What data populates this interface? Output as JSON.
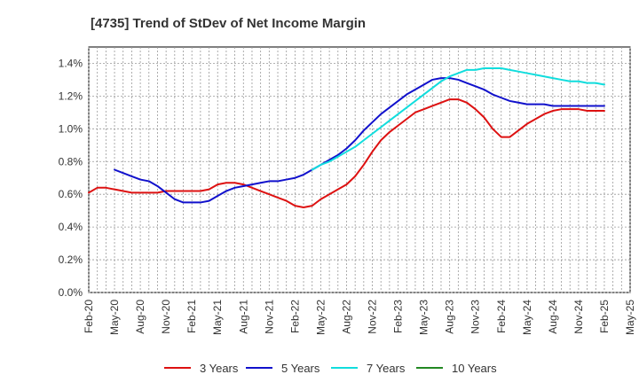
{
  "chart_data": {
    "type": "line",
    "title": "[4735]  Trend of StDev of Net Income Margin",
    "xlabel": "",
    "ylabel": "",
    "ylim": [
      0,
      1.5
    ],
    "y_ticks": [
      0.0,
      0.2,
      0.4,
      0.6,
      0.8,
      1.0,
      1.2,
      1.4
    ],
    "y_tick_labels": [
      "0.0%",
      "0.2%",
      "0.4%",
      "0.6%",
      "0.8%",
      "1.0%",
      "1.2%",
      "1.4%"
    ],
    "x_tick_labels": [
      "Feb-20",
      "May-20",
      "Aug-20",
      "Nov-20",
      "Feb-21",
      "May-21",
      "Aug-21",
      "Nov-21",
      "Feb-22",
      "May-22",
      "Aug-22",
      "Nov-22",
      "Feb-23",
      "May-23",
      "Aug-23",
      "Nov-23",
      "Feb-24",
      "May-24",
      "Aug-24",
      "Nov-24",
      "Feb-25",
      "May-25"
    ],
    "grid": true,
    "legend_position": "bottom",
    "series": [
      {
        "name": "3 Years",
        "color": "#dd1111",
        "x": [
          "2020-02",
          "2020-03",
          "2020-04",
          "2020-05",
          "2020-06",
          "2020-07",
          "2020-08",
          "2020-09",
          "2020-10",
          "2020-11",
          "2020-12",
          "2021-01",
          "2021-02",
          "2021-03",
          "2021-04",
          "2021-05",
          "2021-06",
          "2021-07",
          "2021-08",
          "2021-09",
          "2021-10",
          "2021-11",
          "2021-12",
          "2022-01",
          "2022-02",
          "2022-03",
          "2022-04",
          "2022-05",
          "2022-06",
          "2022-07",
          "2022-08",
          "2022-09",
          "2022-10",
          "2022-11",
          "2022-12",
          "2023-01",
          "2023-02",
          "2023-03",
          "2023-04",
          "2023-05",
          "2023-06",
          "2023-07",
          "2023-08",
          "2023-09",
          "2023-10",
          "2023-11",
          "2023-12",
          "2024-01",
          "2024-02",
          "2024-03",
          "2024-04",
          "2024-05",
          "2024-06",
          "2024-07",
          "2024-08",
          "2024-09",
          "2024-10",
          "2024-11",
          "2024-12",
          "2025-01",
          "2025-02"
        ],
        "values": [
          0.61,
          0.64,
          0.64,
          0.63,
          0.62,
          0.61,
          0.61,
          0.61,
          0.61,
          0.62,
          0.62,
          0.62,
          0.62,
          0.62,
          0.63,
          0.66,
          0.67,
          0.67,
          0.66,
          0.64,
          0.62,
          0.6,
          0.58,
          0.56,
          0.53,
          0.52,
          0.53,
          0.57,
          0.6,
          0.63,
          0.66,
          0.71,
          0.78,
          0.86,
          0.93,
          0.98,
          1.02,
          1.06,
          1.1,
          1.12,
          1.14,
          1.16,
          1.18,
          1.18,
          1.16,
          1.12,
          1.07,
          1.0,
          0.95,
          0.95,
          0.99,
          1.03,
          1.06,
          1.09,
          1.11,
          1.12,
          1.12,
          1.12,
          1.11,
          1.11,
          1.11
        ]
      },
      {
        "name": "5 Years",
        "color": "#1111cc",
        "x": [
          "2020-05",
          "2020-06",
          "2020-07",
          "2020-08",
          "2020-09",
          "2020-10",
          "2020-11",
          "2020-12",
          "2021-01",
          "2021-02",
          "2021-03",
          "2021-04",
          "2021-05",
          "2021-06",
          "2021-07",
          "2021-08",
          "2021-09",
          "2021-10",
          "2021-11",
          "2021-12",
          "2022-01",
          "2022-02",
          "2022-03",
          "2022-04",
          "2022-05",
          "2022-06",
          "2022-07",
          "2022-08",
          "2022-09",
          "2022-10",
          "2022-11",
          "2022-12",
          "2023-01",
          "2023-02",
          "2023-03",
          "2023-04",
          "2023-05",
          "2023-06",
          "2023-07",
          "2023-08",
          "2023-09",
          "2023-10",
          "2023-11",
          "2023-12",
          "2024-01",
          "2024-02",
          "2024-03",
          "2024-04",
          "2024-05",
          "2024-06",
          "2024-07",
          "2024-08",
          "2024-09",
          "2024-10",
          "2024-11",
          "2024-12",
          "2025-01",
          "2025-02"
        ],
        "values": [
          0.75,
          0.73,
          0.71,
          0.69,
          0.68,
          0.65,
          0.61,
          0.57,
          0.55,
          0.55,
          0.55,
          0.56,
          0.59,
          0.62,
          0.64,
          0.65,
          0.66,
          0.67,
          0.68,
          0.68,
          0.69,
          0.7,
          0.72,
          0.75,
          0.78,
          0.81,
          0.84,
          0.88,
          0.93,
          0.99,
          1.04,
          1.09,
          1.13,
          1.17,
          1.21,
          1.24,
          1.27,
          1.3,
          1.31,
          1.31,
          1.3,
          1.28,
          1.26,
          1.24,
          1.21,
          1.19,
          1.17,
          1.16,
          1.15,
          1.15,
          1.15,
          1.14,
          1.14,
          1.14,
          1.14,
          1.14,
          1.14,
          1.14
        ]
      },
      {
        "name": "7 Years",
        "color": "#11dddd",
        "x": [
          "2022-04",
          "2022-05",
          "2022-06",
          "2022-07",
          "2022-08",
          "2022-09",
          "2022-10",
          "2022-11",
          "2022-12",
          "2023-01",
          "2023-02",
          "2023-03",
          "2023-04",
          "2023-05",
          "2023-06",
          "2023-07",
          "2023-08",
          "2023-09",
          "2023-10",
          "2023-11",
          "2023-12",
          "2024-01",
          "2024-02",
          "2024-03",
          "2024-04",
          "2024-05",
          "2024-06",
          "2024-07",
          "2024-08",
          "2024-09",
          "2024-10",
          "2024-11",
          "2024-12",
          "2025-01",
          "2025-02"
        ],
        "values": [
          0.75,
          0.78,
          0.8,
          0.83,
          0.86,
          0.89,
          0.93,
          0.97,
          1.01,
          1.05,
          1.09,
          1.13,
          1.17,
          1.21,
          1.25,
          1.29,
          1.32,
          1.34,
          1.36,
          1.36,
          1.37,
          1.37,
          1.37,
          1.36,
          1.35,
          1.34,
          1.33,
          1.32,
          1.31,
          1.3,
          1.29,
          1.29,
          1.28,
          1.28,
          1.27
        ]
      },
      {
        "name": "10 Years",
        "color": "#228822",
        "x": [],
        "values": []
      }
    ]
  }
}
